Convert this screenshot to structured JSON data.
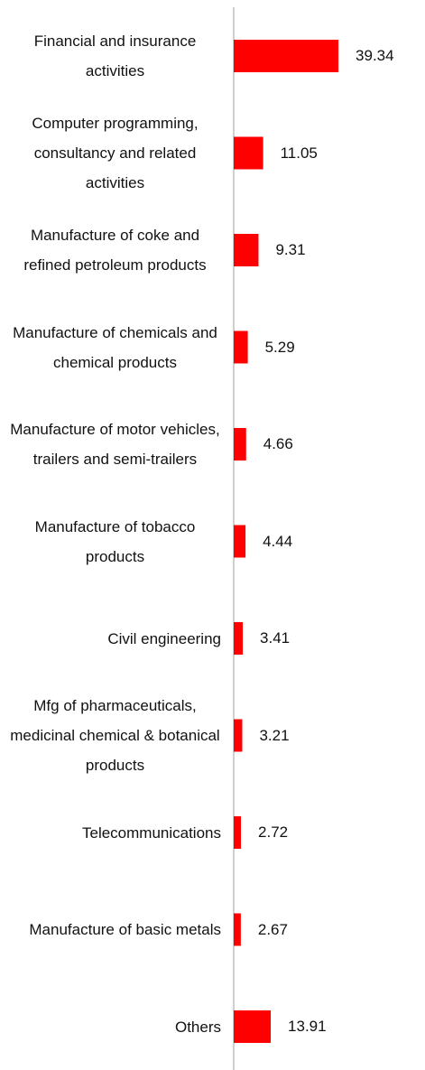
{
  "chart_data": {
    "type": "bar",
    "orientation": "horizontal",
    "color": "#ff0000",
    "categories": [
      "Financial and insurance activities",
      "Computer programming, consultancy and related activities",
      "Manufacture of coke and refined petroleum products",
      "Manufacture of chemicals and chemical products",
      "Manufacture of motor vehicles, trailers and semi-trailers",
      "Manufacture of tobacco products",
      "Civil engineering",
      "Mfg of pharmaceuticals, medicinal chemical & botanical products",
      "Telecommunications",
      "Manufacture of basic metals",
      "Others"
    ],
    "values": [
      39.34,
      11.05,
      9.31,
      5.29,
      4.66,
      4.44,
      3.41,
      3.21,
      2.72,
      2.67,
      13.91
    ]
  }
}
